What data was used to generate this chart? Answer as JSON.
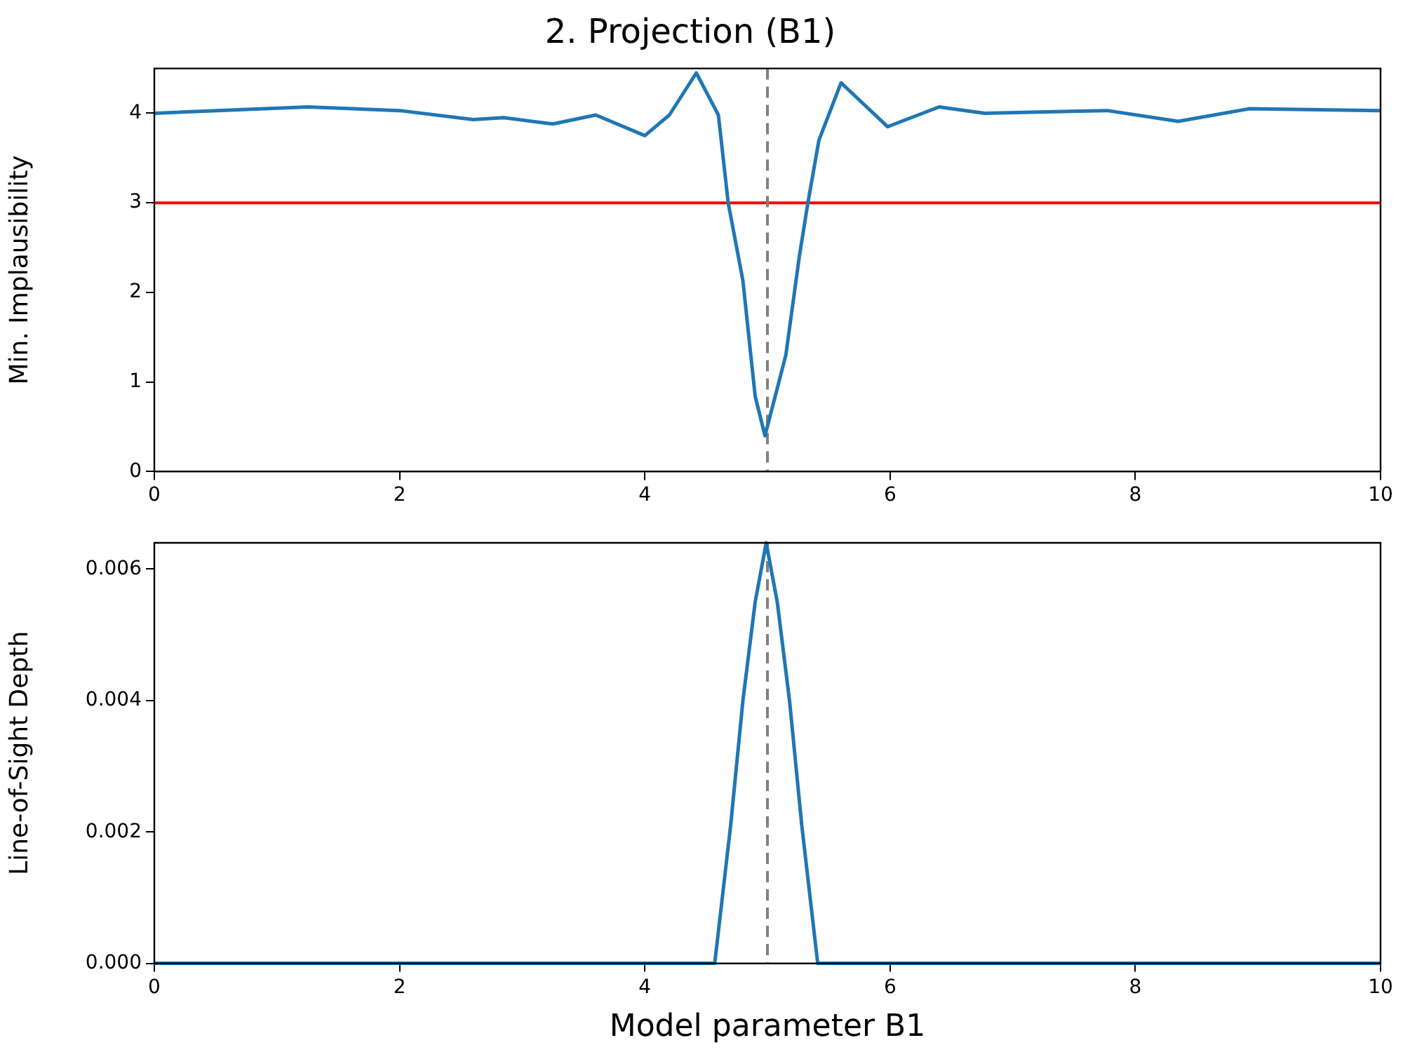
{
  "chart_data": [
    {
      "type": "line",
      "title": "2. Projection (B1)",
      "ylabel": "Min. Implausibility",
      "series": [
        {
          "color": "#1f77b4",
          "x": [
            0,
            1.25,
            2,
            2.6,
            2.85,
            3.25,
            3.6,
            4.0,
            4.2,
            4.42,
            4.6,
            4.68,
            4.8,
            4.9,
            4.98,
            5.15,
            5.26,
            5.33,
            5.42,
            5.6,
            5.98,
            6.4,
            6.77,
            7.77,
            8.35,
            8.93,
            10
          ],
          "values": [
            4.0,
            4.07,
            4.03,
            3.93,
            3.95,
            3.88,
            3.98,
            3.75,
            3.98,
            4.45,
            3.98,
            3.0,
            2.13,
            0.84,
            0.4,
            1.3,
            2.4,
            3.0,
            3.7,
            4.34,
            3.85,
            4.07,
            4.0,
            4.03,
            3.91,
            4.05,
            4.03
          ]
        }
      ],
      "xlim": [
        0,
        10
      ],
      "xticks": [
        0,
        2,
        4,
        6,
        8,
        10
      ],
      "ylim": [
        0,
        4.5
      ],
      "yticks": [
        0,
        1,
        2,
        3,
        4
      ],
      "ref_lines": [
        {
          "axis": "y",
          "value": 3,
          "color": "#ff0000",
          "line_style": "solid"
        },
        {
          "axis": "x",
          "value": 5,
          "color": "#808080",
          "line_style": "dashed"
        }
      ],
      "grid": false,
      "legend": false,
      "marker": "none",
      "line_style": "solid"
    },
    {
      "type": "line",
      "xlabel": "Model parameter B1",
      "ylabel": "Line-of-Sight Depth",
      "series": [
        {
          "color": "#1f77b4",
          "x": [
            0,
            4.57,
            4.7,
            4.8,
            4.9,
            4.99,
            5.08,
            5.18,
            5.28,
            5.41,
            10
          ],
          "values": [
            0,
            0,
            0.0021,
            0.004,
            0.0055,
            0.0064,
            0.0055,
            0.004,
            0.0021,
            0,
            0
          ]
        }
      ],
      "xlim": [
        0,
        10
      ],
      "xticks": [
        0,
        2,
        4,
        6,
        8,
        10
      ],
      "ylim": [
        0,
        0.0064
      ],
      "yticks": [
        {
          "value": 0,
          "label": "0.000"
        },
        {
          "value": 0.002,
          "label": "0.002"
        },
        {
          "value": 0.004,
          "label": "0.004"
        },
        {
          "value": 0.006,
          "label": "0.006"
        }
      ],
      "ref_lines": [
        {
          "axis": "x",
          "value": 5,
          "color": "#808080",
          "line_style": "dashed"
        }
      ],
      "grid": false,
      "legend": false,
      "marker": "none",
      "line_style": "solid"
    }
  ]
}
